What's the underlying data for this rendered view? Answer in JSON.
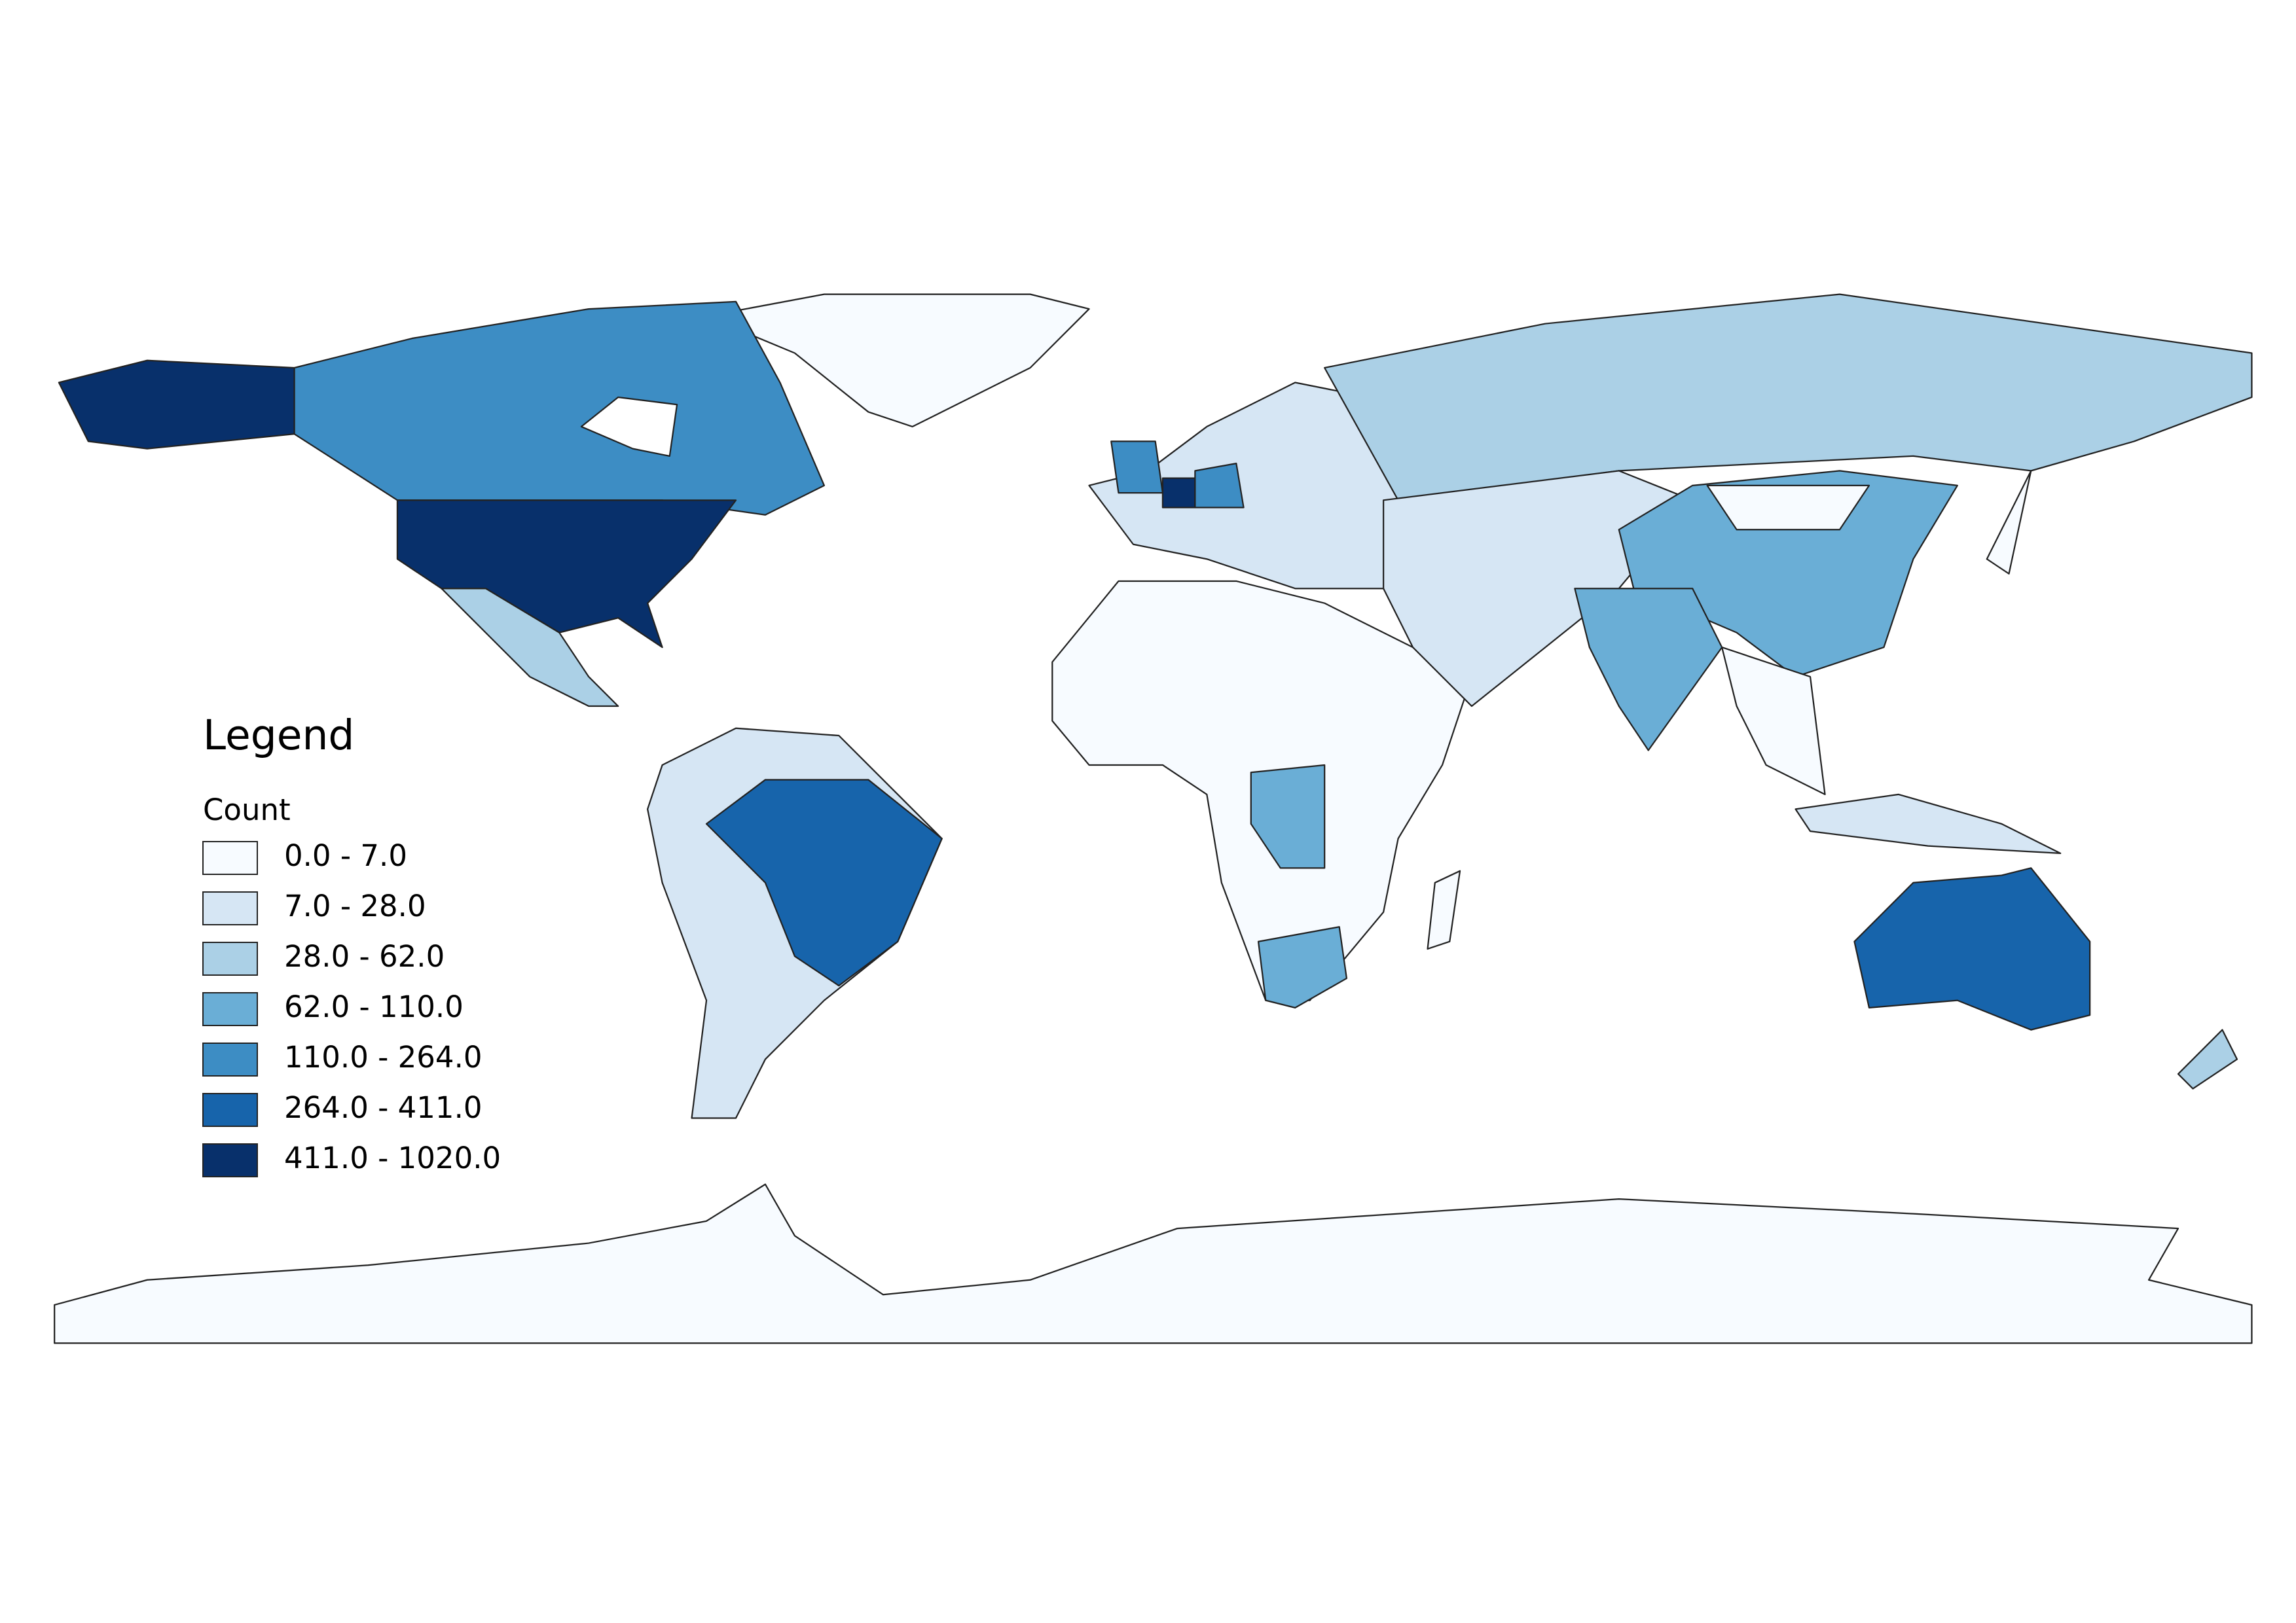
{
  "legend": {
    "title": "Legend",
    "field": "Count",
    "classes": [
      {
        "label": "0.0 - 7.0",
        "color": "#f7fbff"
      },
      {
        "label": "7.0 - 28.0",
        "color": "#d6e6f4"
      },
      {
        "label": "28.0 - 62.0",
        "color": "#abd0e6"
      },
      {
        "label": "62.0 - 110.0",
        "color": "#6aaed6"
      },
      {
        "label": "110.0 - 264.0",
        "color": "#3d8dc4"
      },
      {
        "label": "264.0 - 411.0",
        "color": "#1764ab"
      },
      {
        "label": "411.0 - 1020.0",
        "color": "#08306b"
      }
    ]
  }
}
